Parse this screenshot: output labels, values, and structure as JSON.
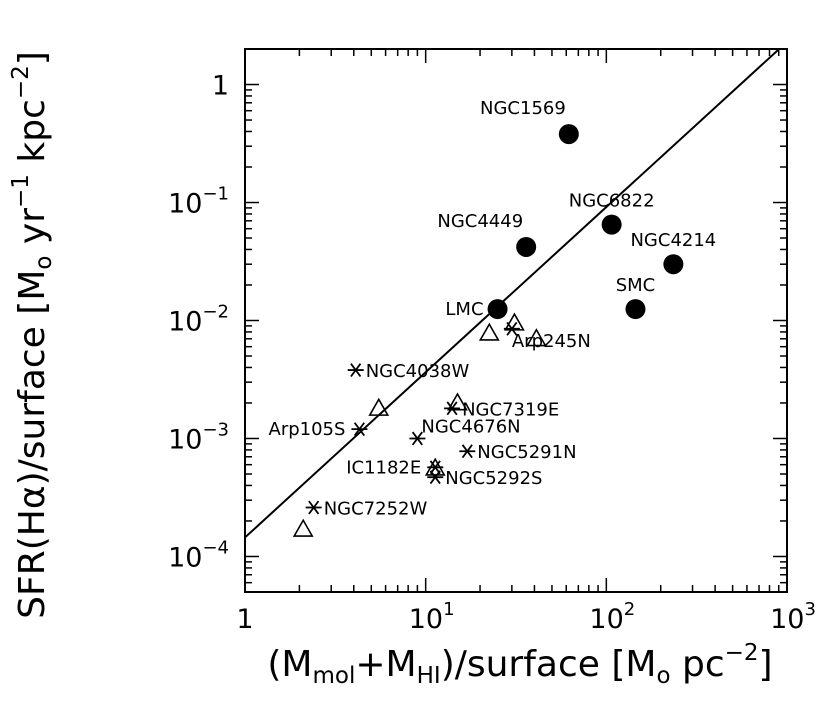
{
  "chart_data": {
    "type": "scatter",
    "axes": {
      "x": {
        "scale": "log",
        "lim": [
          1,
          1000
        ]
      },
      "y": {
        "scale": "log",
        "lim": [
          5e-05,
          2
        ]
      }
    },
    "xlabel": {
      "p1": "(M",
      "s1": "mol",
      "p2": "+M",
      "s2": "HI",
      "p3": ")/surface  [M",
      "s3": "o",
      "p4": " pc",
      "s4": "−2",
      "p5": "]"
    },
    "ylabel": {
      "p1": "SFR(H",
      "g": "α",
      "p2": ")/surface  [M",
      "s1": "o",
      "p3": " yr",
      "s2": "−1",
      "p4": " kpc",
      "s3": "−2",
      "p5": "]"
    },
    "xticks": [
      {
        "value": 1,
        "base": "1",
        "exp": ""
      },
      {
        "value": 10,
        "base": "10",
        "exp": "1"
      },
      {
        "value": 100,
        "base": "10",
        "exp": "2"
      },
      {
        "value": 1000,
        "base": "10",
        "exp": "3"
      }
    ],
    "yticks": [
      {
        "value": 0.0001,
        "base": "10",
        "exp": "−4"
      },
      {
        "value": 0.001,
        "base": "10",
        "exp": "−3"
      },
      {
        "value": 0.01,
        "base": "10",
        "exp": "−2"
      },
      {
        "value": 0.1,
        "base": "10",
        "exp": "−1"
      },
      {
        "value": 1,
        "base": "1",
        "exp": ""
      }
    ],
    "fit_line": {
      "x": [
        1,
        1000
      ],
      "y": [
        0.000145,
        2.3
      ]
    },
    "series": [
      {
        "marker": "filled-circle",
        "points": [
          {
            "x": 62,
            "y": 0.38,
            "label": "NGC1569",
            "label_pos": "above-left"
          },
          {
            "x": 107,
            "y": 0.065,
            "label": "NGC6822",
            "label_pos": "above"
          },
          {
            "x": 36,
            "y": 0.042,
            "label": "NGC4449",
            "label_pos": "above-left"
          },
          {
            "x": 235,
            "y": 0.03,
            "label": "NGC4214",
            "label_pos": "above"
          },
          {
            "x": 25,
            "y": 0.0125,
            "label": "LMC",
            "label_pos": "left"
          },
          {
            "x": 145,
            "y": 0.0125,
            "label": "SMC",
            "label_pos": "above"
          }
        ]
      },
      {
        "marker": "open-triangle",
        "points": [
          {
            "x": 22.5,
            "y": 0.0078,
            "label": ""
          },
          {
            "x": 31,
            "y": 0.0095,
            "label": ""
          },
          {
            "x": 41,
            "y": 0.007,
            "label": ""
          },
          {
            "x": 5.5,
            "y": 0.0018,
            "label": ""
          },
          {
            "x": 15,
            "y": 0.002,
            "label": ""
          },
          {
            "x": 2.1,
            "y": 0.00017,
            "label": ""
          },
          {
            "x": 11.3,
            "y": 0.00056,
            "label": ""
          }
        ]
      },
      {
        "marker": "asterisk",
        "points": [
          {
            "x": 30,
            "y": 0.0085,
            "label": "Arp245N",
            "label_pos": "right-below"
          },
          {
            "x": 4.1,
            "y": 0.0038,
            "label": "NGC4038W",
            "label_pos": "right"
          },
          {
            "x": 14,
            "y": 0.0018,
            "label": "NGC7319E",
            "label_pos": "right"
          },
          {
            "x": 4.3,
            "y": 0.0012,
            "label": "Arp105S",
            "label_pos": "left"
          },
          {
            "x": 9,
            "y": 0.001,
            "label": "NGC4676N",
            "label_pos": "right-up"
          },
          {
            "x": 17,
            "y": 0.00078,
            "label": "NGC5291N",
            "label_pos": "right"
          },
          {
            "x": 11.3,
            "y": 0.00057,
            "label": "IC1182E",
            "label_pos": "left"
          },
          {
            "x": 11.3,
            "y": 0.00047,
            "label": "NGC5292S",
            "label_pos": "right"
          },
          {
            "x": 2.4,
            "y": 0.00026,
            "label": "NGC7252W",
            "label_pos": "right"
          }
        ]
      }
    ]
  }
}
